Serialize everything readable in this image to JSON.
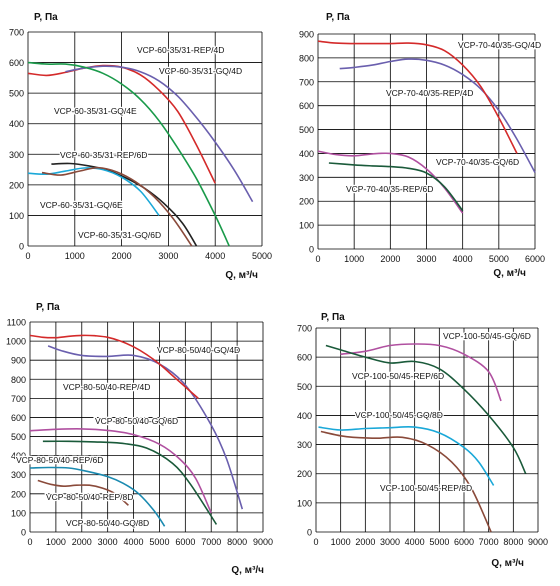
{
  "chart_data": [
    {
      "type": "line",
      "ylabel": "P, Па",
      "xlabel": "Q, м³/ч",
      "xlim": [
        0,
        5000
      ],
      "ylim": [
        0,
        700
      ],
      "xticks": [
        0,
        1000,
        2000,
        3000,
        4000,
        5000
      ],
      "yticks": [
        0,
        100,
        200,
        300,
        400,
        500,
        600,
        700
      ],
      "grid": true,
      "series": [
        {
          "name": "VCP-60-35/31-REP/4D",
          "color": "#d42a2a",
          "x": [
            0,
            400,
            800,
            1200,
            1600,
            2000,
            2400,
            2800,
            3200,
            3600,
            4000
          ],
          "y": [
            565,
            558,
            568,
            582,
            590,
            585,
            560,
            510,
            440,
            330,
            205
          ]
        },
        {
          "name": "VCP-60-35/31-GQ/4D",
          "color": "#6a5fae",
          "x": [
            800,
            1200,
            1600,
            2000,
            2400,
            2800,
            3200,
            3600,
            4000,
            4400,
            4800
          ],
          "y": [
            570,
            582,
            588,
            585,
            570,
            540,
            490,
            420,
            340,
            250,
            145
          ]
        },
        {
          "name": "VCP-60-35/31-GQ/4E",
          "color": "#1a9a4a",
          "x": [
            0,
            400,
            800,
            1200,
            1600,
            2000,
            2400,
            2800,
            3200,
            3600,
            4000,
            4300
          ],
          "y": [
            600,
            595,
            595,
            585,
            565,
            530,
            480,
            410,
            320,
            220,
            100,
            0
          ]
        },
        {
          "name": "VCP-60-35/31-REP/6D",
          "color": "#222222",
          "x": [
            500,
            900,
            1300,
            1700,
            2100,
            2500,
            2900,
            3300,
            3600
          ],
          "y": [
            268,
            270,
            262,
            248,
            222,
            188,
            140,
            75,
            0
          ]
        },
        {
          "name": "VCP-60-35/31-GQ/6E",
          "color": "#1aa8d8",
          "x": [
            0,
            400,
            800,
            1200,
            1600,
            2000,
            2400,
            2800
          ],
          "y": [
            238,
            235,
            245,
            255,
            250,
            225,
            180,
            100
          ]
        },
        {
          "name": "VCP-60-35/31-GQ/6D",
          "color": "#8a4a3a",
          "x": [
            300,
            700,
            1100,
            1500,
            1900,
            2300,
            2700,
            3100,
            3500
          ],
          "y": [
            240,
            232,
            245,
            256,
            242,
            210,
            160,
            90,
            0
          ]
        }
      ]
    },
    {
      "type": "line",
      "ylabel": "P, Па",
      "xlabel": "Q, м³/ч",
      "xlim": [
        0,
        6000
      ],
      "ylim": [
        0,
        900
      ],
      "xticks": [
        0,
        1000,
        2000,
        3000,
        4000,
        5000,
        6000
      ],
      "yticks": [
        0,
        100,
        200,
        300,
        400,
        500,
        600,
        700,
        800,
        900
      ],
      "grid": true,
      "series": [
        {
          "name": "VCP-70-40/35-GQ/4D",
          "color": "#6a5fae",
          "x": [
            600,
            1000,
            1500,
            2000,
            2500,
            3000,
            3500,
            4000,
            4500,
            5000,
            5500,
            6000
          ],
          "y": [
            755,
            760,
            770,
            785,
            795,
            790,
            770,
            730,
            670,
            580,
            460,
            320
          ]
        },
        {
          "name": "VCP-70-40/35-REP/4D",
          "color": "#d42a2a",
          "x": [
            0,
            500,
            1000,
            1500,
            2000,
            2500,
            3000,
            3500,
            4000,
            4500,
            5000,
            5500
          ],
          "y": [
            870,
            862,
            860,
            860,
            860,
            862,
            855,
            830,
            770,
            680,
            550,
            400
          ]
        },
        {
          "name": "VCP-70-40/35-GQ/6D",
          "color": "#b050a0",
          "x": [
            0,
            500,
            1000,
            1500,
            2000,
            2500,
            3000,
            3500,
            4000
          ],
          "y": [
            410,
            395,
            390,
            398,
            400,
            385,
            335,
            255,
            150
          ]
        },
        {
          "name": "VCP-70-40/35-REP/6D",
          "color": "#1a5a3a",
          "x": [
            300,
            1000,
            1500,
            2000,
            2500,
            3000,
            3500,
            4000
          ],
          "y": [
            360,
            352,
            348,
            345,
            338,
            318,
            260,
            160
          ]
        }
      ]
    },
    {
      "type": "line",
      "ylabel": "P, Па",
      "xlabel": "Q, м³/ч",
      "xlim": [
        0,
        9000
      ],
      "ylim": [
        0,
        1100
      ],
      "xticks": [
        0,
        1000,
        2000,
        3000,
        4000,
        5000,
        6000,
        7000,
        8000,
        9000
      ],
      "yticks": [
        0,
        100,
        200,
        300,
        400,
        500,
        600,
        700,
        800,
        900,
        1000,
        1100
      ],
      "grid": true,
      "series": [
        {
          "name": "VCP-80-50/40-GQ/4D",
          "color": "#6a5fae",
          "x": [
            700,
            1200,
            2000,
            3000,
            4000,
            5000,
            6000,
            7000,
            7600,
            8200
          ],
          "y": [
            975,
            950,
            925,
            920,
            925,
            880,
            770,
            560,
            380,
            120
          ]
        },
        {
          "name": "VCP-80-50/40-REP/4D",
          "color": "#d42a2a",
          "x": [
            0,
            500,
            1000,
            1500,
            2000,
            2500,
            3000,
            3500,
            4000,
            4500,
            5000,
            5500,
            6000,
            6500
          ],
          "y": [
            1030,
            1020,
            1018,
            1025,
            1030,
            1028,
            1020,
            1000,
            970,
            930,
            880,
            820,
            760,
            700
          ]
        },
        {
          "name": "VCP-80-50/40-GQ/6D",
          "color": "#b050a0",
          "x": [
            0,
            1000,
            2000,
            3000,
            4000,
            5000,
            5800,
            6400,
            7000
          ],
          "y": [
            530,
            538,
            540,
            532,
            510,
            460,
            380,
            280,
            100
          ]
        },
        {
          "name": "VCP-80-50/40-REP/6D",
          "color": "#1a5a3a",
          "x": [
            500,
            1500,
            2500,
            3500,
            4500,
            5500,
            6200,
            7200
          ],
          "y": [
            475,
            475,
            472,
            465,
            440,
            360,
            250,
            40
          ]
        },
        {
          "name": "VCP-80-50/40-REP/8D",
          "color": "#8a4a3a",
          "x": [
            300,
            800,
            1300,
            1800,
            2300,
            2800,
            3300,
            3800
          ],
          "y": [
            270,
            250,
            240,
            245,
            245,
            230,
            200,
            140
          ]
        },
        {
          "name": "VCP-80-50/40-GQ/8D",
          "color": "#1a8ab0",
          "x": [
            0,
            700,
            1500,
            2200,
            3000,
            3600,
            4200,
            4800,
            5200
          ],
          "y": [
            335,
            338,
            335,
            318,
            290,
            255,
            200,
            110,
            30
          ]
        }
      ]
    },
    {
      "type": "line",
      "ylabel": "P, Па",
      "xlabel": "Q, м³/ч",
      "xlim": [
        0,
        9000
      ],
      "ylim": [
        0,
        700
      ],
      "xticks": [
        0,
        1000,
        2000,
        3000,
        4000,
        5000,
        6000,
        7000,
        8000,
        9000
      ],
      "yticks": [
        0,
        100,
        200,
        300,
        400,
        500,
        600,
        700
      ],
      "grid": true,
      "series": [
        {
          "name": "VCP-100-50/45-GQ/6D",
          "color": "#b050a0",
          "x": [
            1000,
            2000,
            3000,
            4000,
            5000,
            6000,
            7000,
            7500
          ],
          "y": [
            610,
            620,
            640,
            645,
            640,
            610,
            550,
            450
          ]
        },
        {
          "name": "VCP-100-50/45-REP/6D",
          "color": "#1a5a3a",
          "x": [
            400,
            1000,
            2000,
            3000,
            4000,
            5000,
            6000,
            7000,
            8000,
            8500
          ],
          "y": [
            640,
            625,
            600,
            580,
            585,
            560,
            490,
            400,
            290,
            200
          ]
        },
        {
          "name": "VCP-100-50/45-GQ/8D",
          "color": "#1aa8d8",
          "x": [
            100,
            1000,
            2000,
            3000,
            4000,
            5000,
            6000,
            6600,
            7200
          ],
          "y": [
            360,
            350,
            355,
            358,
            360,
            340,
            290,
            240,
            160
          ]
        },
        {
          "name": "VCP-100-50/45-REP/8D",
          "color": "#8a4a3a",
          "x": [
            200,
            1000,
            1500,
            2500,
            3500,
            4500,
            5500,
            6300,
            7100
          ],
          "y": [
            345,
            330,
            325,
            322,
            325,
            300,
            240,
            150,
            0
          ]
        }
      ]
    }
  ]
}
